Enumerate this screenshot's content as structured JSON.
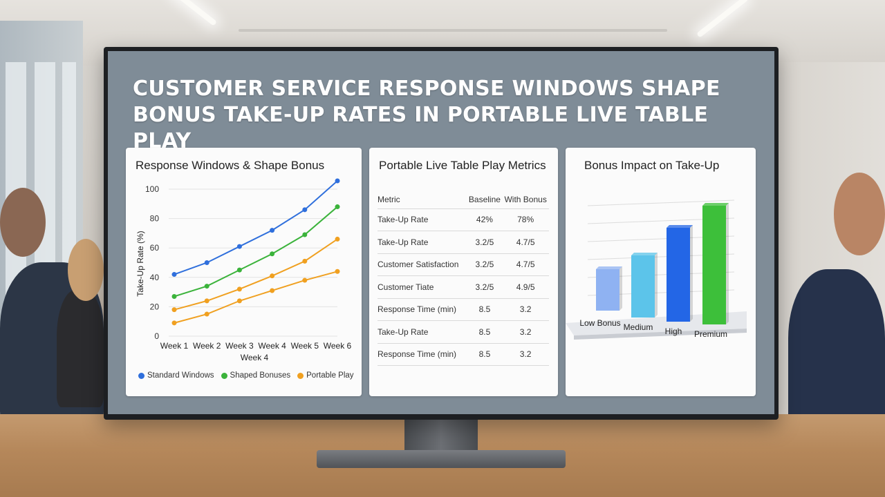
{
  "title_line1": "CUSTOMER SERVICE RESPONSE WINDOWS SHAPE",
  "title_line2": "BONUS TAKE-UP RATES IN PORTABLE LIVE TABLE PLAY",
  "colors": {
    "standard": "#2f6fdc",
    "shaped": "#3bb33b",
    "portable": "#f0a020",
    "bar_low": "#8fb2f2",
    "bar_medium": "#5cc4ea",
    "bar_high": "#2366e6",
    "bar_premium": "#3dbf3a"
  },
  "card1": {
    "title": "Response Windows & Shape Bonus",
    "legend": [
      "Standard Windows",
      "Shaped Bonuses",
      "Portable Play"
    ]
  },
  "card2": {
    "title": "Portable Live Table Play Metrics",
    "headers": [
      "Metric",
      "Baseline",
      "With Bonus"
    ],
    "rows": [
      [
        "Take-Up Rate",
        "42%",
        "78%"
      ],
      [
        "Take-Up Rate",
        "3.2/5",
        "4.7/5"
      ],
      [
        "Customer Satisfaction",
        "3.2/5",
        "4.7/5"
      ],
      [
        "Customer Tiate",
        "3.2/5",
        "4.9/5"
      ],
      [
        "Response Time (min)",
        "8.5",
        "3.2"
      ],
      [
        "Take-Up Rate",
        "8.5",
        "3.2"
      ],
      [
        "Response Time (min)",
        "8.5",
        "3.2"
      ]
    ]
  },
  "card3": {
    "title": "Bonus Impact on Take-Up"
  },
  "chart_data": [
    {
      "type": "line",
      "title": "Response Windows & Shape Bonus",
      "xlabel": "Week 4",
      "ylabel": "Take-Up Rate (%)",
      "categories": [
        "Week 1",
        "Week 2",
        "Week 3",
        "Week 4",
        "Week 5",
        "Week 6"
      ],
      "ylim": [
        0,
        100
      ],
      "yticks": [
        0,
        20,
        40,
        60,
        80,
        100
      ],
      "grid": true,
      "legend": "bottom",
      "series": [
        {
          "name": "Standard Windows",
          "values": [
            42,
            50,
            61,
            72,
            86,
            109
          ]
        },
        {
          "name": "Shaped Bonuses",
          "values": [
            27,
            34,
            45,
            56,
            69,
            88
          ]
        },
        {
          "name": "Portable Play",
          "values": [
            18,
            24,
            32,
            41,
            51,
            66
          ]
        },
        {
          "name": "",
          "values": [
            9,
            15,
            24,
            31,
            38,
            44
          ]
        }
      ]
    },
    {
      "type": "bar",
      "title": "Bonus Impact on Take-Up",
      "categories": [
        "Low Bonus",
        "Medium",
        "High",
        "Premium"
      ],
      "values": [
        30,
        45,
        68,
        86
      ],
      "ylim": [
        0,
        100
      ],
      "grid": true
    }
  ]
}
